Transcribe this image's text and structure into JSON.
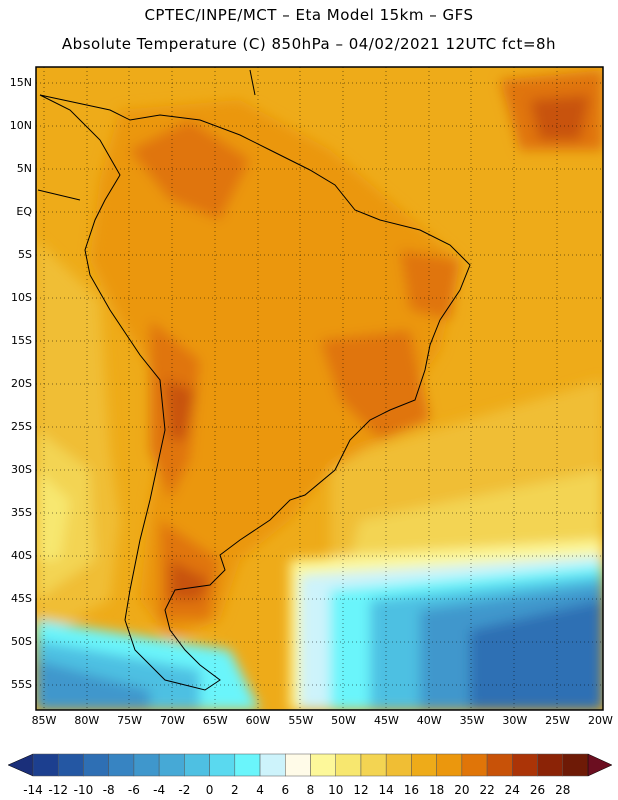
{
  "header": {
    "line1": "CPTEC/INPE/MCT –  Eta Model 15km – GFS",
    "line2": "Absolute Temperature (C) 850hPa – 04/02/2021 12UTC fct=8h"
  },
  "lat_labels": [
    "15N",
    "10N",
    "5N",
    "EQ",
    "5S",
    "10S",
    "15S",
    "20S",
    "25S",
    "30S",
    "35S",
    "40S",
    "45S",
    "50S",
    "55S"
  ],
  "lon_labels": [
    "85W",
    "80W",
    "75W",
    "70W",
    "65W",
    "60W",
    "55W",
    "50W",
    "45W",
    "40W",
    "35W",
    "30W",
    "25W",
    "20W"
  ],
  "colorbar": {
    "labels": [
      "-14",
      "-12",
      "-10",
      "-8",
      "-6",
      "-4",
      "-2",
      "0",
      "2",
      "4",
      "6",
      "8",
      "10",
      "12",
      "14",
      "16",
      "18",
      "20",
      "22",
      "24",
      "26",
      "28"
    ],
    "colors": [
      "#1c3f8f",
      "#2457a3",
      "#2e6fb4",
      "#3784c2",
      "#3f97cc",
      "#46a9d6",
      "#4ec0e2",
      "#5ad9ef",
      "#6af5fb",
      "#cdf3fb",
      "#fffbe8",
      "#fdf89a",
      "#f7e76f",
      "#f3d452",
      "#f0be34",
      "#eeab19",
      "#eb970d",
      "#e07508",
      "#c85208",
      "#ab3407",
      "#8b2306",
      "#6e1a06"
    ],
    "under_color": "#1a2f7a",
    "over_color": "#6b0e20"
  }
}
